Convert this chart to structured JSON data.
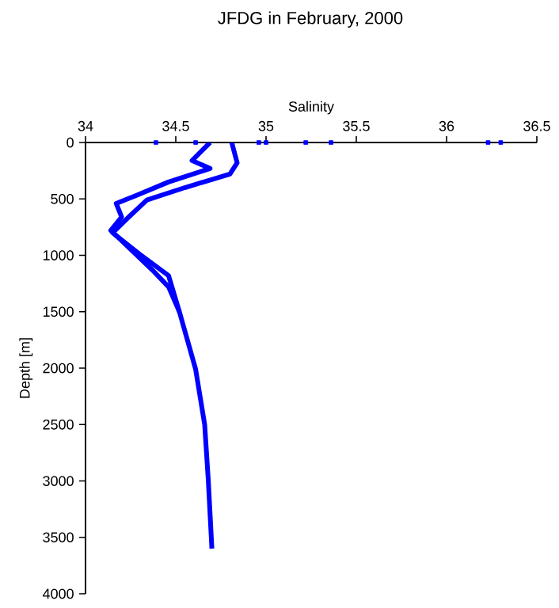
{
  "chart_data": {
    "type": "line",
    "title": "JFDG in February, 2000",
    "xlabel": "Salinity",
    "ylabel": "Depth [m]",
    "xlim": [
      34,
      36.5
    ],
    "xticks": [
      34,
      34.5,
      35,
      35.5,
      36,
      36.5
    ],
    "ylim": [
      4000,
      0
    ],
    "yticks": [
      0,
      500,
      1000,
      1500,
      2000,
      2500,
      3000,
      3500,
      4000
    ],
    "grid": false,
    "line_style": "solid",
    "series": [
      {
        "color": "#0000ff",
        "marker": "none",
        "x": [
          34.81,
          34.84,
          34.8,
          34.55,
          34.34,
          34.24,
          34.15,
          34.3,
          34.46,
          34.52,
          34.61,
          34.66,
          34.68,
          34.7
        ],
        "values": [
          0,
          180,
          280,
          400,
          510,
          660,
          800,
          990,
          1180,
          1500,
          2010,
          2500,
          2990,
          3600
        ]
      },
      {
        "color": "#0000ff",
        "marker": "none",
        "x": [
          34.69,
          34.59,
          34.69,
          34.46,
          34.28,
          34.17,
          34.2,
          34.14,
          34.22,
          34.37,
          34.46,
          34.52
        ],
        "values": [
          0,
          160,
          230,
          350,
          470,
          540,
          660,
          780,
          900,
          1130,
          1280,
          1500
        ]
      },
      {
        "type": "scatter",
        "color": "#0000ff",
        "marker": "square",
        "x": [
          34.39,
          34.61,
          34.96,
          35.0,
          35.22,
          35.36,
          36.23,
          36.3
        ],
        "values": [
          0,
          0,
          0,
          0,
          0,
          0,
          0,
          0
        ]
      }
    ]
  }
}
